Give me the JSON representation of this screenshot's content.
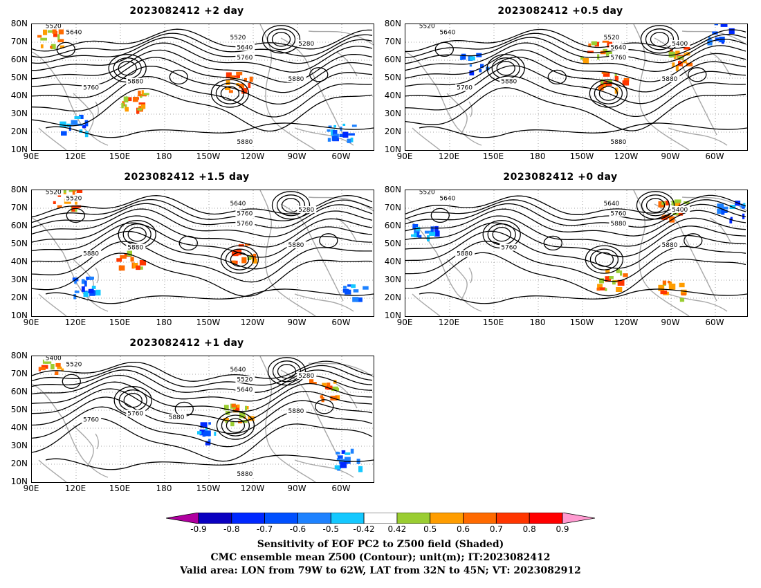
{
  "panels": [
    {
      "title": "2023082412 +2 day",
      "variant": 0,
      "contour_labels": [
        "5520",
        "5640",
        "5280",
        "5520",
        "5640",
        "5760",
        "5760",
        "5880",
        "5880",
        "5880"
      ]
    },
    {
      "title": "2023082412 +0.5 day",
      "variant": 1,
      "contour_labels": [
        "5520",
        "5640",
        "5400",
        "5520",
        "5640",
        "5760",
        "5760",
        "5880",
        "5880",
        "5880"
      ]
    },
    {
      "title": "2023082412 +1.5 day",
      "variant": 2,
      "contour_labels": [
        "5520",
        "5520",
        "5280",
        "5640",
        "5760",
        "5760",
        "5880",
        "5880",
        "5880"
      ]
    },
    {
      "title": "2023082412 +0 day",
      "variant": 3,
      "contour_labels": [
        "5520",
        "5640",
        "5400",
        "5640",
        "5760",
        "5880",
        "5880",
        "5760",
        "5880"
      ]
    },
    {
      "title": "2023082412 +1 day",
      "variant": 4,
      "contour_labels": [
        "5400",
        "5520",
        "5280",
        "5640",
        "5520",
        "5640",
        "5760",
        "5760",
        "5880",
        "5880",
        "5880"
      ]
    }
  ],
  "lat_labels": [
    "80N",
    "70N",
    "60N",
    "50N",
    "40N",
    "30N",
    "20N",
    "10N"
  ],
  "lon_labels": [
    "90E",
    "120E",
    "150E",
    "180",
    "150W",
    "120W",
    "90W",
    "60W"
  ],
  "colorbar": {
    "ticks": [
      "-0.9",
      "-0.8",
      "-0.7",
      "-0.6",
      "-0.5",
      "-0.42",
      "0.42",
      "0.5",
      "0.6",
      "0.7",
      "0.8",
      "0.9"
    ],
    "colors": [
      "#b0009f",
      "#0a00c0",
      "#0028ff",
      "#0050ff",
      "#1e82ff",
      "#14c8ff",
      "#ffffff",
      "#9acd32",
      "#ff9d00",
      "#ff6a00",
      "#ff3600",
      "#ff0000",
      "#ff9ad0"
    ]
  },
  "caption": {
    "line1": "Sensitivity of EOF PC2 to Z500 field (Shaded)",
    "line2": "CMC ensemble mean Z500 (Contour); unit(m); IT:2023082412",
    "line3": "Valid area: LON from 79W to 62W, LAT from 32N to 45N; VT: 2023082912"
  }
}
